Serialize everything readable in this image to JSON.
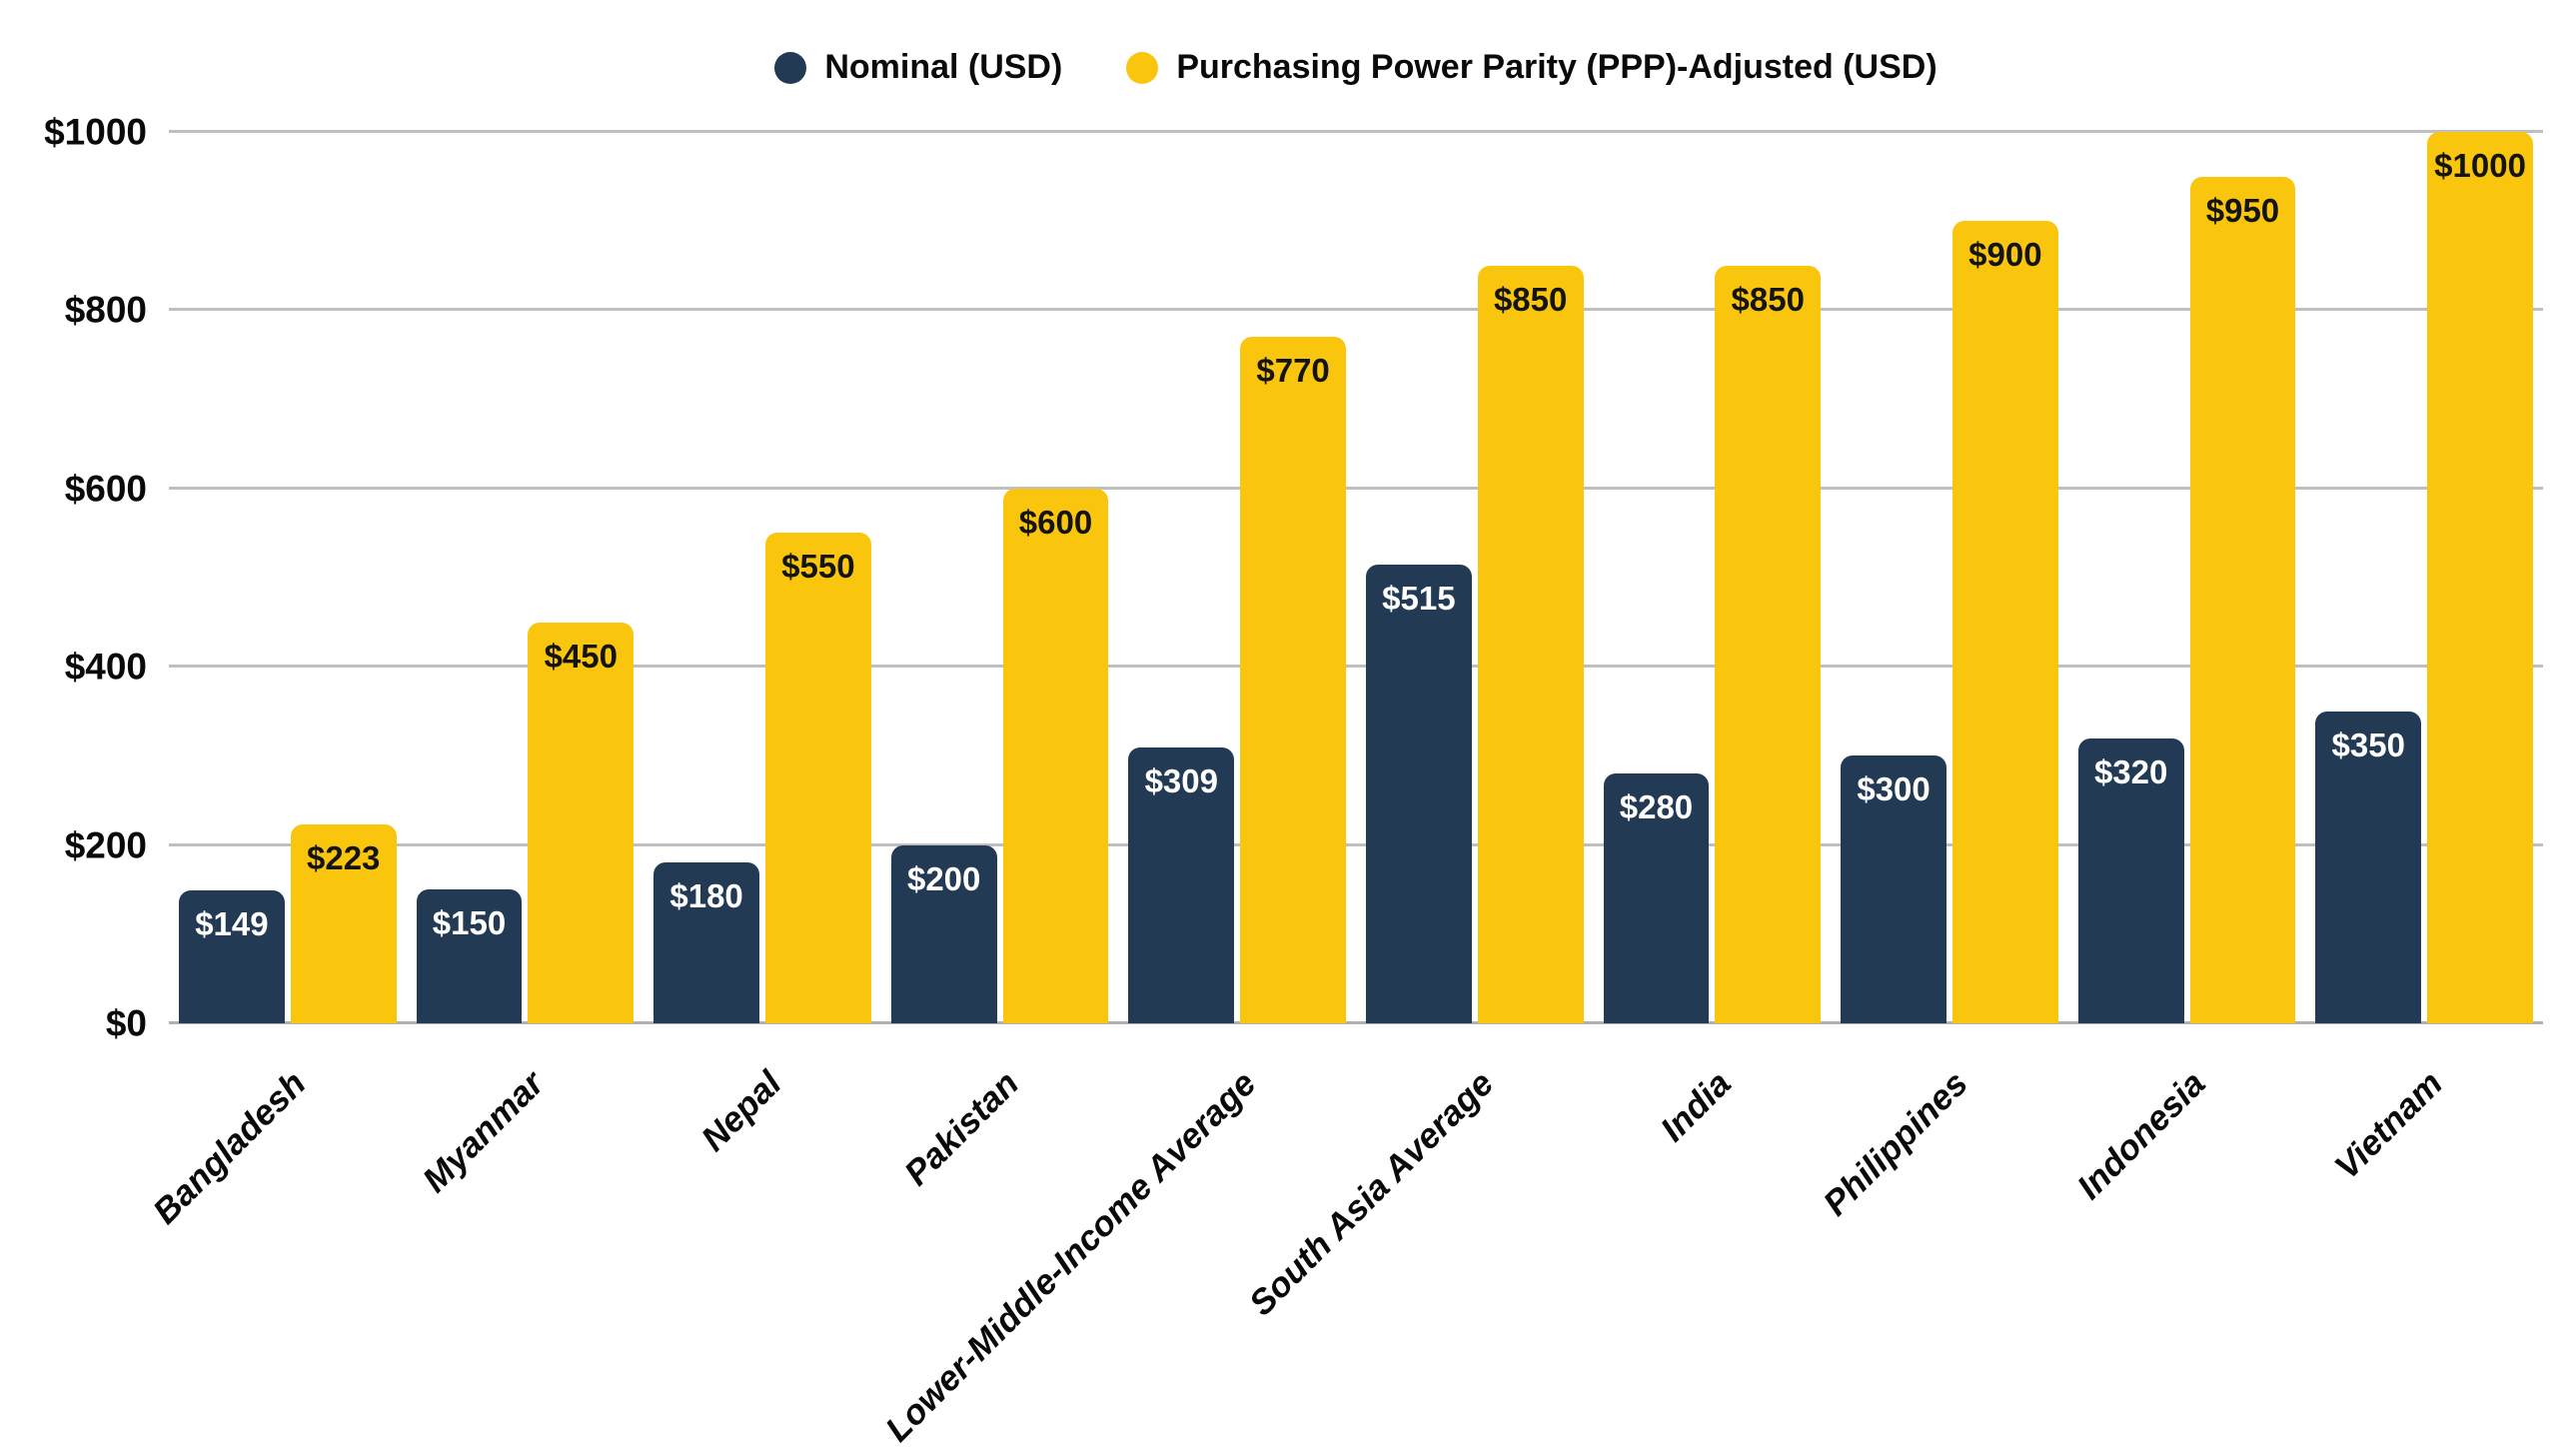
{
  "chart_data": {
    "type": "bar",
    "title": "",
    "xlabel": "",
    "ylabel": "",
    "value_prefix": "$",
    "ylim": [
      0,
      1000
    ],
    "yticks": [
      0,
      200,
      400,
      600,
      800,
      1000
    ],
    "grid": true,
    "legend_position": "top-center",
    "categories": [
      "Bangladesh",
      "Myanmar",
      "Nepal",
      "Pakistan",
      "Lower-Middle-Income Average",
      "South Asia Average",
      "India",
      "Philippines",
      "Indonesia",
      "Vietnam"
    ],
    "series": [
      {
        "name": "Nominal (USD)",
        "color": "#223A54",
        "label_color": "#FFFFFF",
        "values": [
          149,
          150,
          180,
          200,
          309,
          515,
          280,
          300,
          320,
          350
        ]
      },
      {
        "name": "Purchasing Power Parity (PPP)-Adjusted (USD)",
        "color": "#FAC60D",
        "label_color": "#141414",
        "values": [
          223,
          450,
          550,
          600,
          770,
          850,
          850,
          900,
          950,
          1000
        ]
      }
    ]
  },
  "colors": {
    "background": "#FFFFFF",
    "gridline": "#BFBFBF",
    "baseline": "#B0B0B0",
    "text": "#0A0A0A"
  }
}
